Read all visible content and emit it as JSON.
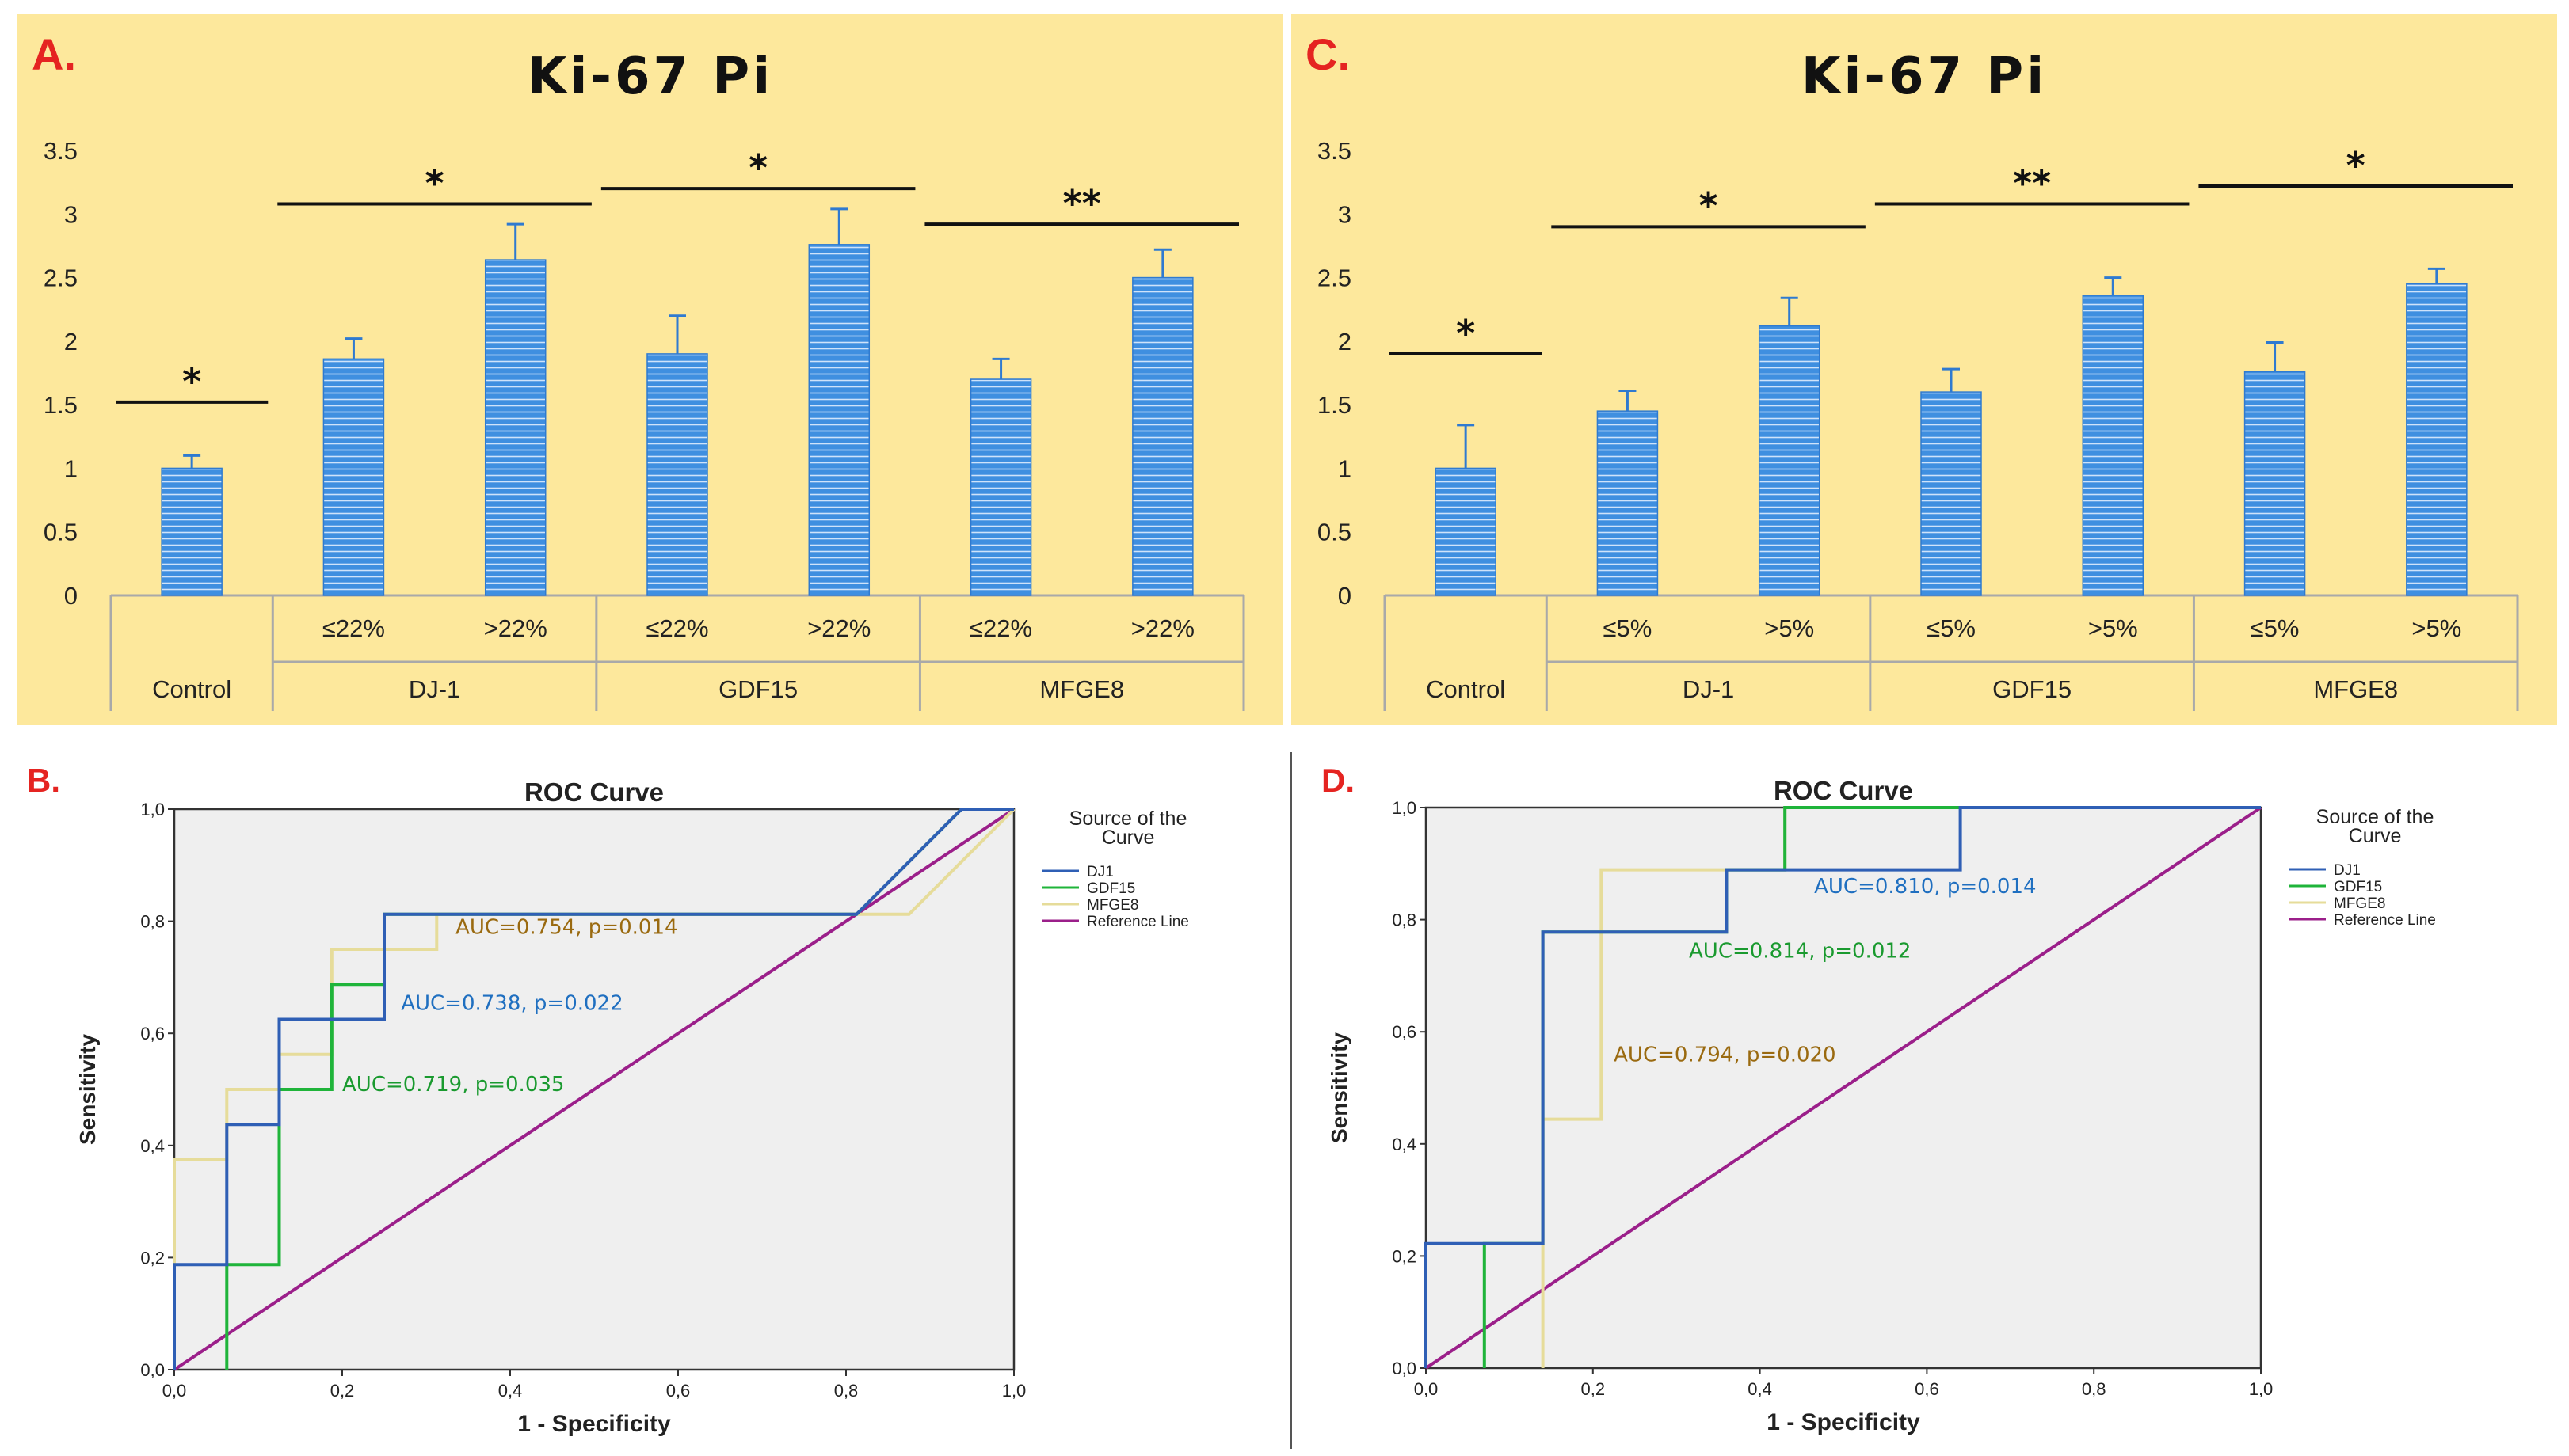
{
  "chart_data": [
    {
      "panel": "A.",
      "type": "bar",
      "title": "Ki-67 Pi",
      "ylim": [
        0,
        3.5
      ],
      "yticks": [
        "0",
        "0.5",
        "1",
        "1.5",
        "2",
        "2.5",
        "3",
        "3.5"
      ],
      "subcategories": [
        "",
        "≤22%",
        ">22%",
        "≤22%",
        ">22%",
        "≤22%",
        ">22%"
      ],
      "groups": [
        {
          "label": "Control",
          "span": 1
        },
        {
          "label": "DJ-1",
          "span": 2
        },
        {
          "label": "GDF15",
          "span": 2
        },
        {
          "label": "MFGE8",
          "span": 2
        }
      ],
      "values": [
        1.0,
        1.86,
        2.64,
        1.9,
        2.76,
        1.7,
        2.5
      ],
      "errors": [
        0.1,
        0.16,
        0.28,
        0.3,
        0.28,
        0.16,
        0.22
      ],
      "significance": [
        {
          "label": "*",
          "from": 0,
          "to": 0,
          "y": 1.52,
          "label_y": 1.72
        },
        {
          "label": "*",
          "from": 1,
          "to": 2,
          "y": 3.08,
          "label_y": 3.28
        },
        {
          "label": "*",
          "from": 3,
          "to": 4,
          "y": 3.2,
          "label_y": 3.4
        },
        {
          "label": "**",
          "from": 5,
          "to": 6,
          "y": 2.92,
          "label_y": 3.12
        }
      ],
      "bar_color": "#3f8fe0",
      "background": "#fde89c"
    },
    {
      "panel": "C.",
      "type": "bar",
      "title": "Ki-67 Pi",
      "ylim": [
        0,
        3.5
      ],
      "yticks": [
        "0",
        "0.5",
        "1",
        "1.5",
        "2",
        "2.5",
        "3",
        "3.5"
      ],
      "subcategories": [
        "",
        "≤5%",
        ">5%",
        "≤5%",
        ">5%",
        "≤5%",
        ">5%"
      ],
      "groups": [
        {
          "label": "Control",
          "span": 1
        },
        {
          "label": "DJ-1",
          "span": 2
        },
        {
          "label": "GDF15",
          "span": 2
        },
        {
          "label": "MFGE8",
          "span": 2
        }
      ],
      "values": [
        1.0,
        1.45,
        2.12,
        1.6,
        2.36,
        1.76,
        2.45
      ],
      "errors": [
        0.34,
        0.16,
        0.22,
        0.18,
        0.14,
        0.23,
        0.12
      ],
      "significance": [
        {
          "label": "*",
          "from": 0,
          "to": 0,
          "y": 1.9,
          "label_y": 2.1
        },
        {
          "label": "*",
          "from": 1,
          "to": 2,
          "y": 2.9,
          "label_y": 3.1
        },
        {
          "label": "**",
          "from": 3,
          "to": 4,
          "y": 3.08,
          "label_y": 3.28
        },
        {
          "label": "*",
          "from": 5,
          "to": 6,
          "y": 3.22,
          "label_y": 3.42
        }
      ],
      "bar_color": "#3f8fe0",
      "background": "#fde89c"
    },
    {
      "panel": "B.",
      "type": "line",
      "title": "ROC Curve",
      "xlabel": "1 - Specificity",
      "ylabel": "Sensitivity",
      "xlim": [
        0,
        1
      ],
      "ylim": [
        0,
        1
      ],
      "ticks": [
        "0,0",
        "0,2",
        "0,4",
        "0,6",
        "0,8",
        "1,0"
      ],
      "legend_title_line1": "Source of the",
      "legend_title_line2": "Curve",
      "series": [
        {
          "name": "DJ1",
          "color": "#2f5fb5",
          "x": [
            0,
            0,
            0.0625,
            0.0625,
            0.125,
            0.125,
            0.25,
            0.25,
            0.8125,
            0.9375,
            1.0
          ],
          "y": [
            0,
            0.1875,
            0.1875,
            0.4375,
            0.4375,
            0.625,
            0.625,
            0.8125,
            0.8125,
            1.0,
            1.0
          ]
        },
        {
          "name": "GDF15",
          "color": "#1fb43a",
          "x": [
            0.0625,
            0.0625,
            0.125,
            0.125,
            0.1875,
            0.1875,
            0.25,
            0.25,
            0.8125,
            0.9375,
            1.0
          ],
          "y": [
            0,
            0.1875,
            0.1875,
            0.5,
            0.5,
            0.6875,
            0.6875,
            0.8125,
            0.8125,
            1.0,
            1.0
          ]
        },
        {
          "name": "MFGE8",
          "color": "#e6dc9a",
          "x": [
            0,
            0,
            0.0625,
            0.0625,
            0.125,
            0.125,
            0.1875,
            0.1875,
            0.3125,
            0.3125,
            0.875,
            1.0
          ],
          "y": [
            0,
            0.375,
            0.375,
            0.5,
            0.5,
            0.5625,
            0.5625,
            0.75,
            0.75,
            0.8125,
            0.8125,
            1.0
          ]
        },
        {
          "name": "Reference Line",
          "color": "#9b1f8a",
          "x": [
            0,
            1
          ],
          "y": [
            0,
            1
          ]
        }
      ],
      "annotations": [
        {
          "text": "AUC=0.754, p=0.014",
          "color": "#9a6a10",
          "x": 0.335,
          "y": 0.79
        },
        {
          "text": "AUC=0.738, p=0.022",
          "color": "#1f6fc0",
          "x": 0.27,
          "y": 0.655
        },
        {
          "text": "AUC=0.719, p=0.035",
          "color": "#1a9a2f",
          "x": 0.2,
          "y": 0.51
        }
      ],
      "background": "#efefef"
    },
    {
      "panel": "D.",
      "type": "line",
      "title": "ROC Curve",
      "xlabel": "1 - Specificity",
      "ylabel": "Sensitivity",
      "xlim": [
        0,
        1
      ],
      "ylim": [
        0,
        1
      ],
      "ticks": [
        "0,0",
        "0,2",
        "0,4",
        "0,6",
        "0,8",
        "1,0"
      ],
      "legend_title_line1": "Source of the",
      "legend_title_line2": "Curve",
      "series": [
        {
          "name": "DJ1",
          "color": "#2f5fb5",
          "x": [
            0,
            0,
            0.14,
            0.14,
            0.36,
            0.36,
            0.43,
            0.43,
            0.64,
            0.64,
            1.0
          ],
          "y": [
            0,
            0.222,
            0.222,
            0.778,
            0.778,
            0.889,
            0.889,
            0.889,
            0.889,
            1.0,
            1.0
          ]
        },
        {
          "name": "GDF15",
          "color": "#1fb43a",
          "x": [
            0.07,
            0.07,
            0.14,
            0.14,
            0.36,
            0.36,
            0.43,
            0.43,
            1.0
          ],
          "y": [
            0,
            0.222,
            0.222,
            0.778,
            0.778,
            0.889,
            0.889,
            1.0,
            1.0
          ]
        },
        {
          "name": "MFGE8",
          "color": "#e6dc9a",
          "x": [
            0.14,
            0.14,
            0.21,
            0.21,
            0.43,
            0.43,
            1.0
          ],
          "y": [
            0,
            0.444,
            0.444,
            0.889,
            0.889,
            1.0,
            1.0
          ]
        },
        {
          "name": "Reference Line",
          "color": "#9b1f8a",
          "x": [
            0,
            1
          ],
          "y": [
            0,
            1
          ]
        }
      ],
      "annotations": [
        {
          "text": "AUC=0.810, p=0.014",
          "color": "#1f6fc0",
          "x": 0.465,
          "y": 0.86
        },
        {
          "text": "AUC=0.814, p=0.012",
          "color": "#1a9a2f",
          "x": 0.315,
          "y": 0.745
        },
        {
          "text": "AUC=0.794, p=0.020",
          "color": "#9a6a10",
          "x": 0.225,
          "y": 0.56
        }
      ],
      "background": "#efefef"
    }
  ]
}
